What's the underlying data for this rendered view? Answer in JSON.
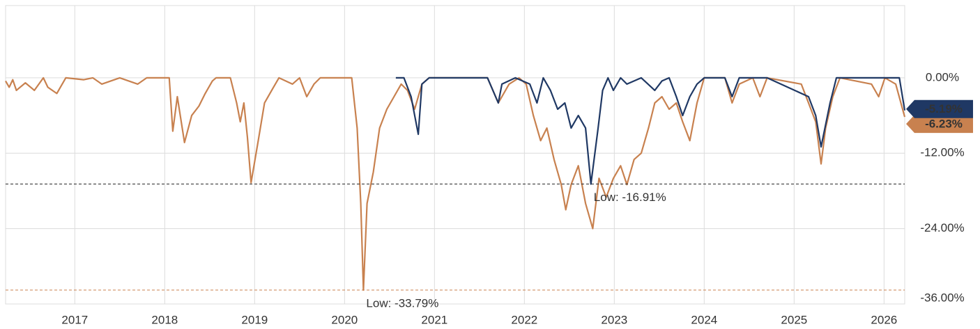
{
  "chart_data": {
    "type": "line",
    "xlim": [
      2016.23,
      2026.23
    ],
    "xticks": [
      2017,
      2018,
      2019,
      2020,
      2021,
      2022,
      2023,
      2024,
      2025,
      2026
    ],
    "ylim": [
      -36,
      11.5
    ],
    "yticks": [
      {
        "value": 0,
        "label": "0.00%"
      },
      {
        "value": -12,
        "label": "-12.00%"
      },
      {
        "value": -24,
        "label": "-24.00%"
      },
      {
        "value": -36,
        "label": "-36.00%"
      }
    ],
    "grid": true,
    "series": [
      {
        "color": "#c8814f",
        "x": [
          2016.23,
          2016.27,
          2016.31,
          2016.35,
          2016.45,
          2016.55,
          2016.65,
          2016.7,
          2016.8,
          2016.9,
          2017.1,
          2017.2,
          2017.3,
          2017.5,
          2017.7,
          2017.8,
          2018.0,
          2018.05,
          2018.09,
          2018.14,
          2018.22,
          2018.3,
          2018.38,
          2018.45,
          2018.53,
          2018.57,
          2018.73,
          2018.8,
          2018.84,
          2018.88,
          2018.92,
          2018.96,
          2019.04,
          2019.11,
          2019.19,
          2019.27,
          2019.42,
          2019.5,
          2019.58,
          2019.66,
          2019.73,
          2019.97,
          2020.08,
          2020.14,
          2020.18,
          2020.21,
          2020.25,
          2020.32,
          2020.39,
          2020.47,
          2020.55,
          2020.63,
          2020.7,
          2020.78,
          2020.86,
          2020.94,
          2021.59,
          2021.71,
          2021.83,
          2021.94,
          2022.02,
          2022.1,
          2022.18,
          2022.25,
          2022.33,
          2022.41,
          2022.46,
          2022.52,
          2022.6,
          2022.68,
          2022.76,
          2022.83,
          2022.91,
          2022.99,
          2023.07,
          2023.14,
          2023.22,
          2023.3,
          2023.38,
          2023.45,
          2023.53,
          2023.61,
          2023.69,
          2023.76,
          2023.84,
          2023.92,
          2024.0,
          2024.23,
          2024.31,
          2024.39,
          2024.54,
          2024.62,
          2024.7,
          2025.08,
          2025.16,
          2025.24,
          2025.3,
          2025.35,
          2025.43,
          2025.51,
          2025.86,
          2025.94,
          2026.01,
          2026.13,
          2026.23
        ],
        "values": [
          -0.5,
          -1.5,
          -0.3,
          -2,
          -0.8,
          -2,
          0,
          -1.5,
          -2.5,
          0,
          -0.3,
          0,
          -1,
          0,
          -1,
          0,
          0,
          0,
          -8.5,
          -3,
          -10.3,
          -6,
          -4.5,
          -2.5,
          -0.5,
          0,
          0,
          -4,
          -7,
          -4,
          -9.5,
          -16.7,
          -10,
          -4,
          -2,
          0,
          -1,
          0,
          -3,
          -1,
          0,
          0,
          0,
          -8,
          -20,
          -33.79,
          -20,
          -15,
          -8,
          -5,
          -3,
          -1,
          -2,
          -5,
          -1,
          0,
          0,
          -4,
          -1,
          0,
          -1,
          -6,
          -10,
          -8,
          -13,
          -17,
          -21,
          -17,
          -14,
          -20,
          -24,
          -16,
          -19,
          -16,
          -14,
          -17,
          -13,
          -12,
          -8,
          -4,
          -3,
          -5,
          -4,
          -7,
          -10,
          -4,
          0,
          0,
          -4,
          -1,
          0,
          -3,
          0,
          -1,
          -4,
          -7,
          -13.7,
          -8,
          -3,
          0,
          -1,
          -3,
          0,
          -1,
          -6.23
        ],
        "low": {
          "value": -33.79,
          "label": "Low: -33.79%"
        },
        "last": {
          "value": -6.23,
          "label": "-6.23%"
        }
      },
      {
        "color": "#1f3864",
        "x": [
          2020.57,
          2020.66,
          2020.74,
          2020.82,
          2020.86,
          2020.94,
          2021.59,
          2021.71,
          2021.75,
          2021.9,
          2022.06,
          2022.14,
          2022.21,
          2022.29,
          2022.37,
          2022.45,
          2022.52,
          2022.6,
          2022.68,
          2022.74,
          2022.82,
          2022.87,
          2022.93,
          2022.99,
          2023.07,
          2023.14,
          2023.3,
          2023.45,
          2023.53,
          2023.61,
          2023.69,
          2023.76,
          2023.84,
          2023.92,
          2024.0,
          2024.23,
          2024.31,
          2024.39,
          2024.7,
          2025.16,
          2025.24,
          2025.3,
          2025.4,
          2025.47,
          2026.17,
          2026.23
        ],
        "values": [
          0,
          0,
          -3,
          -9,
          -1,
          0,
          0,
          -4,
          -1,
          0,
          -1,
          -4,
          0,
          -2,
          -5,
          -4,
          -8,
          -6,
          -8,
          -16.91,
          -8,
          -2,
          0,
          -2,
          0,
          -1,
          0,
          -2,
          -0.5,
          0,
          -3,
          -6,
          -3,
          -1,
          0,
          0,
          -3,
          0,
          0,
          -3,
          -6,
          -11,
          -4,
          0,
          0,
          -5.19
        ],
        "low": {
          "value": -16.91,
          "label": "Low: -16.91%"
        },
        "last": {
          "value": -5.19,
          "label": "-5.19%"
        }
      }
    ]
  }
}
